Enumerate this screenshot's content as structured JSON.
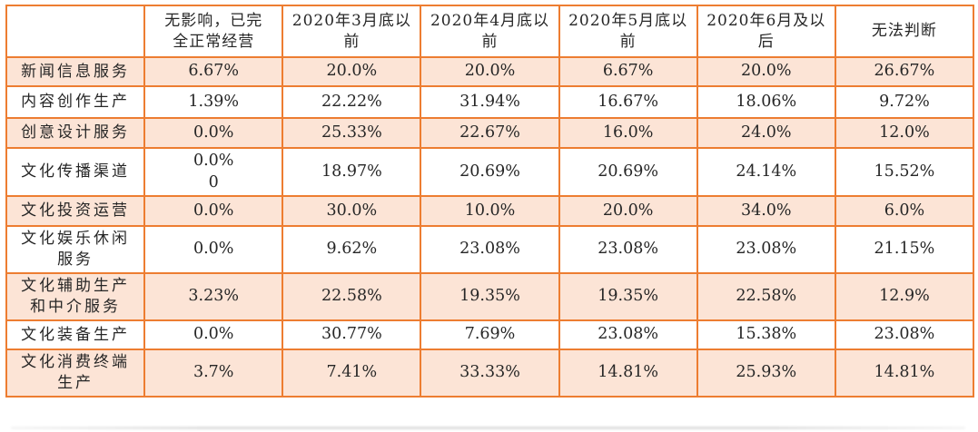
{
  "chart_data": {
    "type": "table",
    "title": "",
    "columns": [
      "",
      "无影响，已完\n全正常经营",
      "2020年3月底以\n前",
      "2020年4月底以\n前",
      "2020年5月底以\n前",
      "2020年6月及以\n后",
      "无法判断"
    ],
    "rows": [
      {
        "label": "新闻信息服务",
        "values": [
          "6.67%",
          "20.0%",
          "20.0%",
          "6.67%",
          "20.0%",
          "26.67%"
        ],
        "shaded": true
      },
      {
        "label": "内容创作生产",
        "values": [
          "1.39%",
          "22.22%",
          "31.94%",
          "16.67%",
          "18.06%",
          "9.72%"
        ],
        "shaded": false
      },
      {
        "label": "创意设计服务",
        "values": [
          "0.0%",
          "25.33%",
          "22.67%",
          "16.0%",
          "24.0%",
          "12.0%"
        ],
        "shaded": true
      },
      {
        "label": "文化传播渠道",
        "values": [
          "0.0%\n0",
          "18.97%",
          "20.69%",
          "20.69%",
          "24.14%",
          "15.52%"
        ],
        "shaded": false
      },
      {
        "label": "文化投资运营",
        "values": [
          "0.0%",
          "30.0%",
          "10.0%",
          "20.0%",
          "34.0%",
          "6.0%"
        ],
        "shaded": true
      },
      {
        "label": "文化娱乐休闲\n服务",
        "values": [
          "0.0%",
          "9.62%",
          "23.08%",
          "23.08%",
          "23.08%",
          "21.15%"
        ],
        "shaded": false
      },
      {
        "label": "文化辅助生产\n和中介服务",
        "values": [
          "3.23%",
          "22.58%",
          "19.35%",
          "19.35%",
          "22.58%",
          "12.9%"
        ],
        "shaded": true
      },
      {
        "label": "文化装备生产",
        "values": [
          "0.0%",
          "30.77%",
          "7.69%",
          "23.08%",
          "15.38%",
          "23.08%"
        ],
        "shaded": false
      },
      {
        "label": "文化消费终端\n生产",
        "values": [
          "3.7%",
          "7.41%",
          "33.33%",
          "14.81%",
          "25.93%",
          "14.81%"
        ],
        "shaded": true
      }
    ],
    "layout_hints": {
      "banding": "alternating rows shaded starting with first data row",
      "header_background": "white"
    }
  },
  "colors": {
    "border": "#ED7D31",
    "band_fill": "#FCE4D6",
    "text": "#262626",
    "background": "#FFFFFF"
  }
}
